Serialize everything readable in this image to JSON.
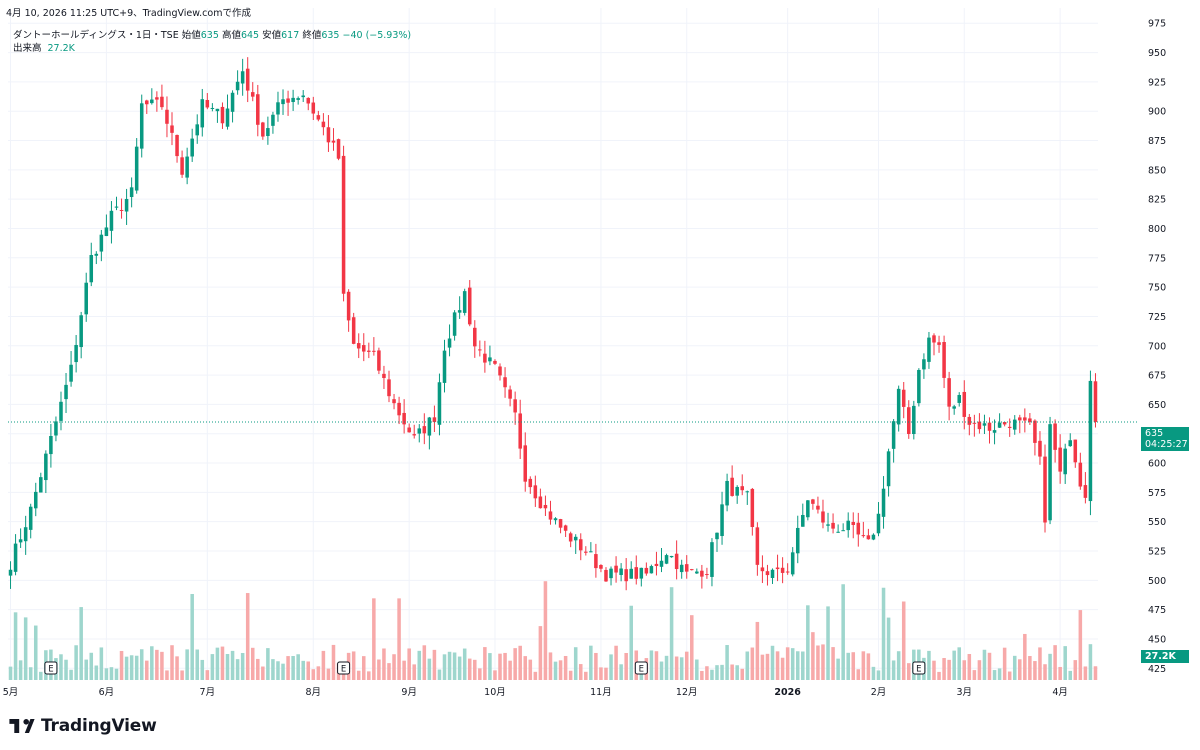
{
  "header": {
    "created_text": "4月 10, 2026 11:25 UTC+9、TradingView.comで作成"
  },
  "legend": {
    "symbol_line": "ダントーホールディングス・1日・TSE",
    "open_label": "始値",
    "open": "635",
    "high_label": "高値",
    "high": "645",
    "low_label": "安値",
    "low": "617",
    "close_label": "終値",
    "close": "635",
    "change": "−40 (−5.93%)",
    "volume_label": "出来高",
    "volume": "27.2K"
  },
  "price_tag": {
    "price": "635",
    "countdown": "04:25:27"
  },
  "volume_tag": "27.2K",
  "brand": {
    "name": "TradingView"
  },
  "colors": {
    "up": "#089981",
    "down": "#F23645",
    "up_vol": "#9ED6CD",
    "down_vol": "#F7A9A9",
    "grid": "#F0F3FA"
  },
  "chart_data": {
    "type": "candlestick",
    "y_axis": {
      "ticks": [
        425,
        450,
        475,
        500,
        525,
        550,
        575,
        600,
        625,
        650,
        675,
        700,
        725,
        750,
        775,
        800,
        825,
        850,
        875,
        900,
        925,
        950,
        975
      ],
      "range": [
        415,
        988
      ]
    },
    "x_axis": {
      "labels": [
        {
          "label": "5月",
          "idx": 0
        },
        {
          "label": "6月",
          "idx": 19
        },
        {
          "label": "7月",
          "idx": 39
        },
        {
          "label": "8月",
          "idx": 60
        },
        {
          "label": "9月",
          "idx": 79
        },
        {
          "label": "10月",
          "idx": 96
        },
        {
          "label": "11月",
          "idx": 117
        },
        {
          "label": "12月",
          "idx": 134
        },
        {
          "label": "2026",
          "idx": 154
        },
        {
          "label": "2月",
          "idx": 172
        },
        {
          "label": "3月",
          "idx": 189
        },
        {
          "label": "4月",
          "idx": 208
        }
      ]
    },
    "earnings_markers": [
      {
        "label": "E",
        "idx": 8
      },
      {
        "label": "E",
        "idx": 66
      },
      {
        "label": "E",
        "idx": 125
      },
      {
        "label": "E",
        "idx": 180
      }
    ],
    "last_price": 635,
    "anchors": [
      {
        "i": 0,
        "p": 515
      },
      {
        "i": 4,
        "p": 560
      },
      {
        "i": 8,
        "p": 620
      },
      {
        "i": 12,
        "p": 680
      },
      {
        "i": 16,
        "p": 775
      },
      {
        "i": 20,
        "p": 810
      },
      {
        "i": 24,
        "p": 830
      },
      {
        "i": 26,
        "p": 905
      },
      {
        "i": 30,
        "p": 905
      },
      {
        "i": 34,
        "p": 850
      },
      {
        "i": 38,
        "p": 905
      },
      {
        "i": 42,
        "p": 895
      },
      {
        "i": 46,
        "p": 935
      },
      {
        "i": 50,
        "p": 880
      },
      {
        "i": 54,
        "p": 910
      },
      {
        "i": 58,
        "p": 915
      },
      {
        "i": 62,
        "p": 885
      },
      {
        "i": 65,
        "p": 860
      },
      {
        "i": 66,
        "p": 740
      },
      {
        "i": 68,
        "p": 700
      },
      {
        "i": 72,
        "p": 690
      },
      {
        "i": 76,
        "p": 650
      },
      {
        "i": 80,
        "p": 620
      },
      {
        "i": 84,
        "p": 640
      },
      {
        "i": 86,
        "p": 700
      },
      {
        "i": 90,
        "p": 745
      },
      {
        "i": 92,
        "p": 700
      },
      {
        "i": 96,
        "p": 680
      },
      {
        "i": 100,
        "p": 640
      },
      {
        "i": 102,
        "p": 590
      },
      {
        "i": 106,
        "p": 560
      },
      {
        "i": 110,
        "p": 540
      },
      {
        "i": 114,
        "p": 525
      },
      {
        "i": 118,
        "p": 505
      },
      {
        "i": 122,
        "p": 505
      },
      {
        "i": 126,
        "p": 505
      },
      {
        "i": 130,
        "p": 525
      },
      {
        "i": 134,
        "p": 505
      },
      {
        "i": 138,
        "p": 510
      },
      {
        "i": 142,
        "p": 580
      },
      {
        "i": 146,
        "p": 570
      },
      {
        "i": 148,
        "p": 510
      },
      {
        "i": 152,
        "p": 505
      },
      {
        "i": 154,
        "p": 510
      },
      {
        "i": 158,
        "p": 570
      },
      {
        "i": 162,
        "p": 545
      },
      {
        "i": 166,
        "p": 545
      },
      {
        "i": 170,
        "p": 530
      },
      {
        "i": 172,
        "p": 555
      },
      {
        "i": 174,
        "p": 610
      },
      {
        "i": 176,
        "p": 660
      },
      {
        "i": 178,
        "p": 625
      },
      {
        "i": 180,
        "p": 680
      },
      {
        "i": 182,
        "p": 705
      },
      {
        "i": 184,
        "p": 700
      },
      {
        "i": 186,
        "p": 645
      },
      {
        "i": 188,
        "p": 655
      },
      {
        "i": 190,
        "p": 635
      },
      {
        "i": 194,
        "p": 630
      },
      {
        "i": 198,
        "p": 635
      },
      {
        "i": 202,
        "p": 630
      },
      {
        "i": 204,
        "p": 600
      },
      {
        "i": 205,
        "p": 555
      },
      {
        "i": 206,
        "p": 630
      },
      {
        "i": 208,
        "p": 590
      },
      {
        "i": 210,
        "p": 625
      },
      {
        "i": 212,
        "p": 585
      },
      {
        "i": 213,
        "p": 575
      },
      {
        "i": 214,
        "p": 675
      },
      {
        "i": 215,
        "p": 635
      }
    ]
  }
}
